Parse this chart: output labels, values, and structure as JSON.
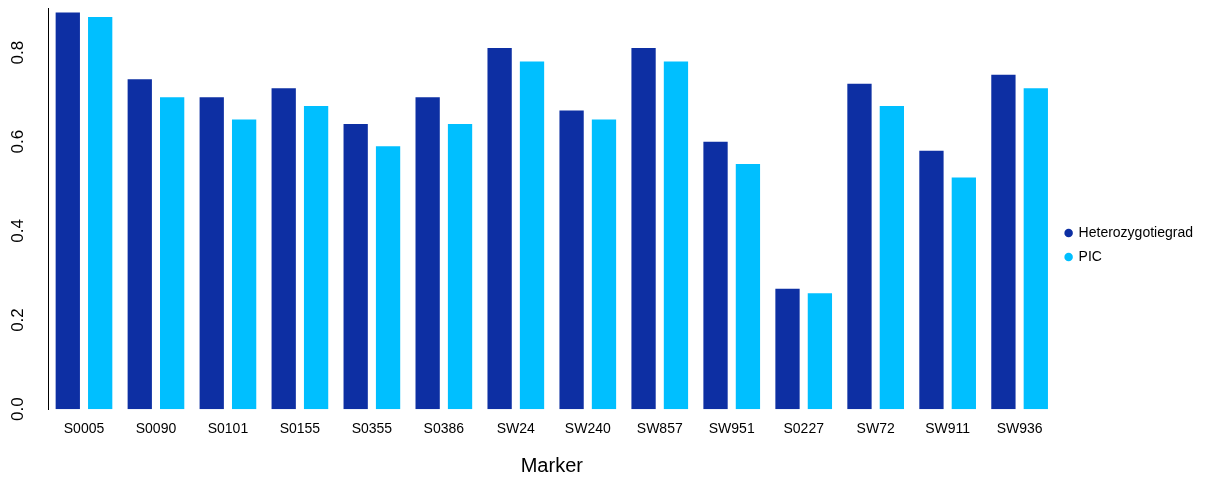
{
  "chart_data": {
    "type": "bar",
    "xlabel": "Marker",
    "categories": [
      "S0005",
      "S0090",
      "S0101",
      "S0155",
      "S0355",
      "S0386",
      "SW24",
      "SW240",
      "SW857",
      "SW951",
      "S0227",
      "SW72",
      "SW911",
      "SW936"
    ],
    "series": [
      {
        "name": "Heterozygotiegrad",
        "color": "#0d2fa3",
        "values": [
          0.89,
          0.74,
          0.7,
          0.72,
          0.64,
          0.7,
          0.81,
          0.67,
          0.81,
          0.6,
          0.27,
          0.73,
          0.58,
          0.75
        ]
      },
      {
        "name": "PIC",
        "color": "#00bfff",
        "values": [
          0.88,
          0.7,
          0.65,
          0.68,
          0.59,
          0.64,
          0.78,
          0.65,
          0.78,
          0.55,
          0.26,
          0.68,
          0.52,
          0.72
        ]
      }
    ],
    "ylim": [
      0,
      0.9
    ],
    "yticks": [
      {
        "value": 0,
        "label": "0.0"
      },
      {
        "value": 0.2,
        "label": "0.2"
      },
      {
        "value": 0.4,
        "label": "0.4"
      },
      {
        "value": 0.6,
        "label": "0.6"
      },
      {
        "value": 0.8,
        "label": "0.8"
      }
    ],
    "grid": false,
    "legend": "right"
  }
}
